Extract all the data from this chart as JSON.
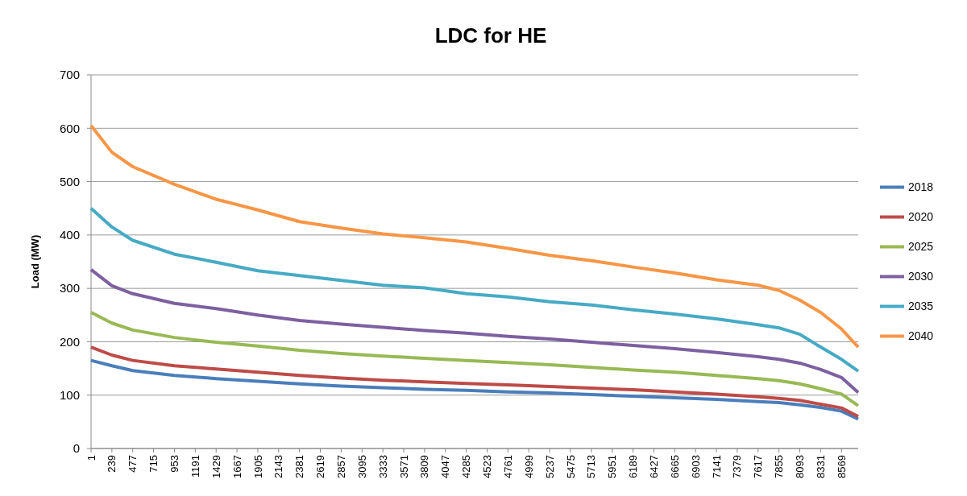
{
  "chart_data": {
    "type": "line",
    "title": "LDC for HE",
    "ylabel": "Load (MW)",
    "x": [
      1,
      239,
      477,
      953,
      1429,
      1905,
      2381,
      2857,
      3333,
      3809,
      4285,
      4761,
      5237,
      5713,
      6189,
      6665,
      7141,
      7617,
      7855,
      8093,
      8331,
      8569,
      8760
    ],
    "xlim": [
      1,
      8760
    ],
    "xticks": [
      1,
      239,
      477,
      715,
      953,
      1191,
      1429,
      1667,
      1905,
      2143,
      2381,
      2619,
      2857,
      3095,
      3333,
      3571,
      3809,
      4047,
      4285,
      4523,
      4761,
      4999,
      5237,
      5475,
      5713,
      5951,
      6189,
      6427,
      6665,
      6903,
      7141,
      7379,
      7617,
      7855,
      8093,
      8331,
      8569
    ],
    "ylim": [
      0,
      700
    ],
    "yticks": [
      0,
      100,
      200,
      300,
      400,
      500,
      600,
      700
    ],
    "grid": "y",
    "legend": "right",
    "marker": "none",
    "line_style": "solid",
    "series": [
      {
        "name": "2018",
        "color": "#4a7ebb",
        "values": [
          165,
          155,
          146,
          137,
          131,
          126,
          121,
          117,
          114,
          111,
          109,
          106,
          104,
          101,
          98,
          95,
          92,
          88,
          86,
          82,
          77,
          70,
          55
        ]
      },
      {
        "name": "2020",
        "color": "#be4b48",
        "values": [
          190,
          175,
          165,
          155,
          149,
          143,
          137,
          132,
          128,
          125,
          122,
          119,
          116,
          113,
          110,
          106,
          102,
          97,
          94,
          90,
          83,
          76,
          60
        ]
      },
      {
        "name": "2025",
        "color": "#98b954",
        "values": [
          255,
          235,
          222,
          208,
          199,
          192,
          184,
          178,
          173,
          169,
          165,
          161,
          157,
          152,
          147,
          143,
          137,
          131,
          127,
          121,
          112,
          102,
          80
        ]
      },
      {
        "name": "2030",
        "color": "#7d60a0",
        "values": [
          335,
          305,
          290,
          272,
          262,
          250,
          240,
          233,
          227,
          221,
          216,
          210,
          205,
          199,
          193,
          187,
          180,
          172,
          167,
          160,
          148,
          133,
          105
        ]
      },
      {
        "name": "2035",
        "color": "#46aac5",
        "values": [
          450,
          415,
          390,
          364,
          349,
          333,
          324,
          315,
          306,
          301,
          290,
          284,
          275,
          269,
          260,
          252,
          243,
          232,
          226,
          214,
          190,
          167,
          145
        ]
      },
      {
        "name": "2040",
        "color": "#f79646",
        "values": [
          605,
          555,
          528,
          495,
          467,
          447,
          425,
          413,
          402,
          395,
          387,
          375,
          362,
          352,
          340,
          329,
          316,
          306,
          296,
          278,
          255,
          224,
          190
        ]
      }
    ]
  }
}
